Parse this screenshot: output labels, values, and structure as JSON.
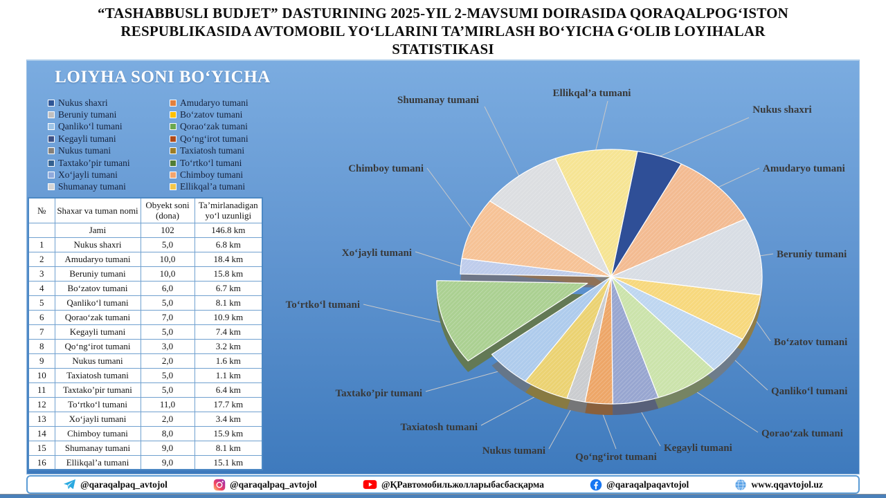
{
  "title": {
    "lines": [
      "“TASHABBUSLI BUDJET” DASTURINING 2025-YIL 2-MAVSUMI DOIRASIDA QORAQALPOG‘ISTON",
      "RESPUBLIKASIDA AVTOMOBIL YO‘LLARINI TA’MIRLASH BO‘YICHA G‘OLIB  LOYIHALAR",
      "STATISTIKASI"
    ]
  },
  "panel": {
    "heading": "LOIYHA SONI BO‘YICHA"
  },
  "chart_data": {
    "type": "pie",
    "title": "LOIYHA SONI BO‘YICHA",
    "categories": [
      "Nukus shaxri",
      "Amudaryo tumani",
      "Beruniy tumani",
      "Bo‘zatov tumani",
      "Qanliko‘l tumani",
      "Qorao‘zak tumani",
      "Kegayli tumani",
      "Qo‘ng‘irot tumani",
      "Nukus tumani",
      "Taxiatosh tumani",
      "Taxtako’pir tumani",
      "To‘rtko‘l tumani",
      "Xo‘jayli tumani",
      "Chimboy tumani",
      "Shumanay tumani",
      "Ellikqal’a tumani"
    ],
    "values": [
      5,
      10,
      10,
      6,
      5,
      7,
      5,
      3,
      2,
      5,
      5,
      11,
      2,
      8,
      9,
      9
    ],
    "total": 102,
    "exploded_category": "To‘rtko‘l tumani",
    "style": "3d-exploded",
    "legend_position": "top-left, two columns",
    "pie_colors": [
      "#2F4F97",
      "#F3BB92",
      "#D8DDE4",
      "#F7D87D",
      "#BED6F0",
      "#CBE3AB",
      "#98A6D0",
      "#EDA668",
      "#CACCCF",
      "#EBD272",
      "#AECBEC",
      "#ABD092",
      "#BECCEB",
      "#F6C296",
      "#DCDEE1",
      "#F6E494"
    ],
    "legend_colors": [
      "#2E5596",
      "#E2803E",
      "#C0BFBF",
      "#FFC000",
      "#9DC3E6",
      "#6BA84F",
      "#3D5185",
      "#AE4B1C",
      "#85807A",
      "#9D7D26",
      "#33608F",
      "#507D35",
      "#8FAADC",
      "#F1A56E",
      "#D4D4D4",
      "#F2C649"
    ]
  },
  "table": {
    "headers": [
      "№",
      "Shaxar va tuman nomi",
      "Obyekt soni (dona)",
      "Ta’mirlanadigan yo‘l uzunligi"
    ],
    "total_row": {
      "n": "",
      "name": "Jami",
      "objects": "102",
      "length": "146.8 km"
    },
    "rows": [
      {
        "n": "1",
        "name": "Nukus shaxri",
        "objects": "5,0",
        "length": "6.8 km"
      },
      {
        "n": "2",
        "name": "Amudaryo tumani",
        "objects": "10,0",
        "length": "18.4 km"
      },
      {
        "n": "3",
        "name": "Beruniy tumani",
        "objects": "10,0",
        "length": "15.8 km"
      },
      {
        "n": "4",
        "name": "Bo‘zatov tumani",
        "objects": "6,0",
        "length": "6.7 km"
      },
      {
        "n": "5",
        "name": "Qanliko‘l tumani",
        "objects": "5,0",
        "length": "8.1 km"
      },
      {
        "n": "6",
        "name": "Qorao‘zak tumani",
        "objects": "7,0",
        "length": "10.9 km"
      },
      {
        "n": "7",
        "name": "Kegayli tumani",
        "objects": "5,0",
        "length": "7.4 km"
      },
      {
        "n": "8",
        "name": "Qo‘ng‘irot tumani",
        "objects": "3,0",
        "length": "3.2 km"
      },
      {
        "n": "9",
        "name": "Nukus tumani",
        "objects": "2,0",
        "length": "1.6 km"
      },
      {
        "n": "10",
        "name": "Taxiatosh tumani",
        "objects": "5,0",
        "length": "1.1 km"
      },
      {
        "n": "11",
        "name": "Taxtako’pir tumani",
        "objects": "5,0",
        "length": "6.4 km"
      },
      {
        "n": "12",
        "name": "To‘rtko‘l tumani",
        "objects": "11,0",
        "length": "17.7 km"
      },
      {
        "n": "13",
        "name": "Xo‘jayli tumani",
        "objects": "2,0",
        "length": "3.4 km"
      },
      {
        "n": "14",
        "name": "Chimboy tumani",
        "objects": "8,0",
        "length": "15.9 km"
      },
      {
        "n": "15",
        "name": "Shumanay tumani",
        "objects": "9,0",
        "length": "8.1 km"
      },
      {
        "n": "16",
        "name": "Ellikqal’a tumani",
        "objects": "9,0",
        "length": "15.1 km"
      }
    ]
  },
  "footer": {
    "items": [
      {
        "icon": "telegram-icon",
        "text": "@qaraqalpaq_avtojol"
      },
      {
        "icon": "instagram-icon",
        "text": "@qaraqalpaq_avtojol"
      },
      {
        "icon": "youtube-icon",
        "text": "@ҚРавтомобильжолларыбасбасқарма"
      },
      {
        "icon": "facebook-icon",
        "text": "@qaraqalpaqavtojol"
      },
      {
        "icon": "globe-icon",
        "text": "www.qqavtojol.uz"
      }
    ]
  },
  "colors": {
    "background_top": "#7BACE0",
    "background_bottom": "#3E7ABD",
    "accent_border": "#5B9BD5",
    "panel_heading_text": "#FFFFFF",
    "pie_label_text": "#383838",
    "leader_line": "#C9C9C9"
  }
}
